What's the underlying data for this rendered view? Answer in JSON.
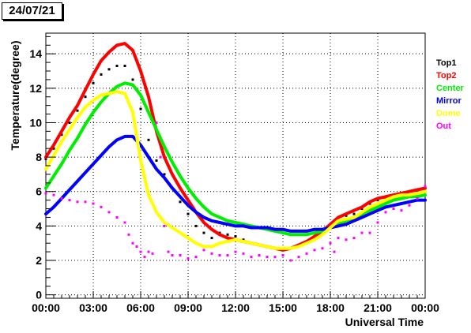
{
  "chart_data": {
    "type": "line",
    "title": "24/07/21",
    "xlabel": "Universal Time",
    "ylabel": "Temperature(degree)",
    "x_ticks": [
      "00:00",
      "03:00",
      "06:00",
      "09:00",
      "12:00",
      "15:00",
      "18:00",
      "21:00",
      "00:00"
    ],
    "xlim": [
      0,
      24
    ],
    "ylim": [
      -0.2,
      15.2
    ],
    "y_ticks": [
      "0",
      "2",
      "4",
      "6",
      "8",
      "10",
      "12",
      "14"
    ],
    "y_tick_values": [
      0,
      2,
      4,
      6,
      8,
      10,
      12,
      14
    ],
    "grid": true,
    "legend_position": "right",
    "series": [
      {
        "name": "Top1",
        "color": "#000000",
        "marker": "dots",
        "x": [
          0,
          0.5,
          1,
          1.5,
          2,
          2.5,
          3,
          3.5,
          4,
          4.5,
          5,
          5.5,
          6,
          6.5,
          7,
          7.5,
          8,
          8.5,
          9,
          9.5,
          10,
          10.5,
          11,
          11.5,
          12,
          12.5,
          13,
          13.5,
          14,
          14.5,
          15,
          15.5,
          16,
          16.5,
          17,
          17.5,
          18,
          18.5,
          19,
          19.5,
          20,
          20.5,
          21,
          21.5,
          22,
          22.5,
          23,
          23.5,
          24
        ],
        "values": [
          7.9,
          8.5,
          9.3,
          10.0,
          10.7,
          11.5,
          12.3,
          12.8,
          13.1,
          13.3,
          13.3,
          12.5,
          10.8,
          9.0,
          7.8,
          7.0,
          6.2,
          5.4,
          4.7,
          4.0,
          3.6,
          3.3,
          3.6,
          3.5,
          3.4,
          3.2,
          3.0,
          2.9,
          2.8,
          2.7,
          2.6,
          2.7,
          2.8,
          3.0,
          3.2,
          3.6,
          4.0,
          4.5,
          4.6,
          4.7,
          5.0,
          5.3,
          5.5,
          5.6,
          5.8,
          5.9,
          6.0,
          6.0,
          6.0
        ]
      },
      {
        "name": "Top2",
        "color": "#ff0000",
        "marker": "line",
        "x": [
          0,
          0.5,
          1,
          1.5,
          2,
          2.5,
          3,
          3.5,
          4,
          4.5,
          5,
          5.5,
          6,
          6.5,
          7,
          7.5,
          8,
          8.5,
          9,
          9.5,
          10,
          10.5,
          11,
          11.5,
          12,
          12.5,
          13,
          13.5,
          14,
          14.5,
          15,
          15.5,
          16,
          16.5,
          17,
          17.5,
          18,
          18.5,
          19,
          19.5,
          20,
          20.5,
          21,
          21.5,
          22,
          22.5,
          23,
          23.5,
          24
        ],
        "values": [
          8.0,
          8.7,
          9.5,
          10.3,
          11.0,
          11.9,
          12.8,
          13.6,
          14.1,
          14.5,
          14.6,
          14.2,
          13.0,
          11.5,
          9.5,
          8.0,
          7.0,
          6.2,
          5.5,
          4.8,
          4.2,
          3.8,
          3.5,
          3.3,
          3.2,
          3.1,
          3.0,
          2.9,
          2.8,
          2.7,
          2.6,
          2.7,
          2.9,
          3.1,
          3.4,
          3.7,
          4.1,
          4.5,
          4.7,
          4.9,
          5.1,
          5.4,
          5.6,
          5.7,
          5.8,
          5.9,
          6.0,
          6.1,
          6.2
        ]
      },
      {
        "name": "Center",
        "color": "#00ee00",
        "marker": "line",
        "x": [
          0,
          0.5,
          1,
          1.5,
          2,
          2.5,
          3,
          3.5,
          4,
          4.5,
          5,
          5.5,
          6,
          6.5,
          7,
          7.5,
          8,
          8.5,
          9,
          9.5,
          10,
          10.5,
          11,
          11.5,
          12,
          12.5,
          13,
          13.5,
          14,
          14.5,
          15,
          15.5,
          16,
          16.5,
          17,
          17.5,
          18,
          18.5,
          19,
          19.5,
          20,
          20.5,
          21,
          21.5,
          22,
          22.5,
          23,
          23.5,
          24
        ],
        "values": [
          6.2,
          6.9,
          7.6,
          8.4,
          9.1,
          9.9,
          10.6,
          11.2,
          11.7,
          12.1,
          12.3,
          12.2,
          11.6,
          10.6,
          9.6,
          8.6,
          7.7,
          6.9,
          6.2,
          5.6,
          5.1,
          4.7,
          4.5,
          4.3,
          4.2,
          4.1,
          4.0,
          3.9,
          3.8,
          3.7,
          3.6,
          3.5,
          3.5,
          3.5,
          3.6,
          3.7,
          3.9,
          4.1,
          4.3,
          4.5,
          4.7,
          4.9,
          5.1,
          5.3,
          5.5,
          5.6,
          5.7,
          5.7,
          5.8
        ]
      },
      {
        "name": "Mirror",
        "color": "#0000ff",
        "marker": "line",
        "x": [
          0,
          0.5,
          1,
          1.5,
          2,
          2.5,
          3,
          3.5,
          4,
          4.5,
          5,
          5.5,
          6,
          6.5,
          7,
          7.5,
          8,
          8.5,
          9,
          9.5,
          10,
          10.5,
          11,
          11.5,
          12,
          12.5,
          13,
          13.5,
          14,
          14.5,
          15,
          15.5,
          16,
          16.5,
          17,
          17.5,
          18,
          18.5,
          19,
          19.5,
          20,
          20.5,
          21,
          21.5,
          22,
          22.5,
          23,
          23.5,
          24
        ],
        "values": [
          4.7,
          5.1,
          5.6,
          6.1,
          6.6,
          7.1,
          7.6,
          8.1,
          8.6,
          9.0,
          9.2,
          9.2,
          8.7,
          8.0,
          7.3,
          6.8,
          6.2,
          5.7,
          5.2,
          4.8,
          4.5,
          4.3,
          4.2,
          4.1,
          4.0,
          4.0,
          3.9,
          3.9,
          3.9,
          3.8,
          3.8,
          3.7,
          3.7,
          3.7,
          3.8,
          3.8,
          3.9,
          4.0,
          4.1,
          4.3,
          4.5,
          4.7,
          4.9,
          5.1,
          5.2,
          5.3,
          5.4,
          5.5,
          5.5
        ]
      },
      {
        "name": "Dome",
        "color": "#ffff00",
        "marker": "line",
        "x": [
          0,
          0.5,
          1,
          1.5,
          2,
          2.5,
          3,
          3.5,
          4,
          4.5,
          5,
          5.5,
          6,
          6.5,
          7,
          7.5,
          8,
          8.5,
          9,
          9.5,
          10,
          10.5,
          11,
          11.5,
          12,
          12.5,
          13,
          13.5,
          14,
          14.5,
          15,
          15.5,
          16,
          16.5,
          17,
          17.5,
          18,
          18.5,
          19,
          19.5,
          20,
          20.5,
          21,
          21.5,
          22,
          22.5,
          23,
          23.5,
          24
        ],
        "values": [
          7.3,
          8.1,
          8.9,
          9.6,
          10.3,
          10.9,
          11.3,
          11.6,
          11.7,
          11.8,
          11.7,
          10.6,
          7.8,
          5.8,
          4.8,
          4.2,
          3.9,
          3.6,
          3.3,
          3.0,
          2.8,
          2.8,
          3.0,
          3.1,
          3.2,
          3.1,
          3.0,
          2.9,
          2.8,
          2.7,
          2.7,
          2.7,
          2.8,
          3.0,
          3.2,
          3.5,
          3.9,
          4.3,
          4.4,
          4.5,
          4.8,
          5.1,
          5.3,
          5.5,
          5.7,
          5.8,
          5.8,
          5.9,
          6.0
        ]
      },
      {
        "name": "Out",
        "color": "#ff00ff",
        "marker": "dots",
        "x": [
          0,
          0.5,
          1,
          1.5,
          2,
          2.5,
          3,
          3.5,
          4,
          4.5,
          5,
          5.25,
          5.5,
          5.75,
          6,
          6.25,
          6.5,
          6.75,
          7,
          7.25,
          7.5,
          7.75,
          8,
          8.5,
          9,
          9.5,
          10,
          10.5,
          11,
          11.5,
          12,
          12.5,
          13,
          13.5,
          14,
          14.5,
          15,
          15.5,
          16,
          16.5,
          17,
          17.5,
          18,
          18.25,
          18.5,
          19,
          19.5,
          20,
          20.5,
          21,
          21.5,
          22,
          22.5,
          23,
          23.5,
          24
        ],
        "values": [
          5.9,
          5.8,
          5.6,
          5.5,
          5.4,
          5.4,
          5.3,
          5.1,
          4.8,
          4.5,
          4.2,
          3.5,
          3.0,
          2.8,
          2.5,
          2.2,
          2.5,
          2.4,
          10.0,
          8.0,
          4.0,
          2.5,
          2.3,
          2.3,
          2.1,
          2.2,
          2.6,
          2.4,
          2.3,
          2.3,
          2.5,
          2.4,
          2.2,
          2.3,
          2.2,
          2.2,
          2.3,
          2.0,
          2.2,
          2.4,
          2.6,
          2.7,
          3.0,
          2.5,
          3.3,
          3.2,
          3.3,
          3.6,
          3.6,
          4.2,
          4.8,
          5.0,
          4.9,
          5.2,
          5.6,
          6.3
        ]
      }
    ]
  }
}
